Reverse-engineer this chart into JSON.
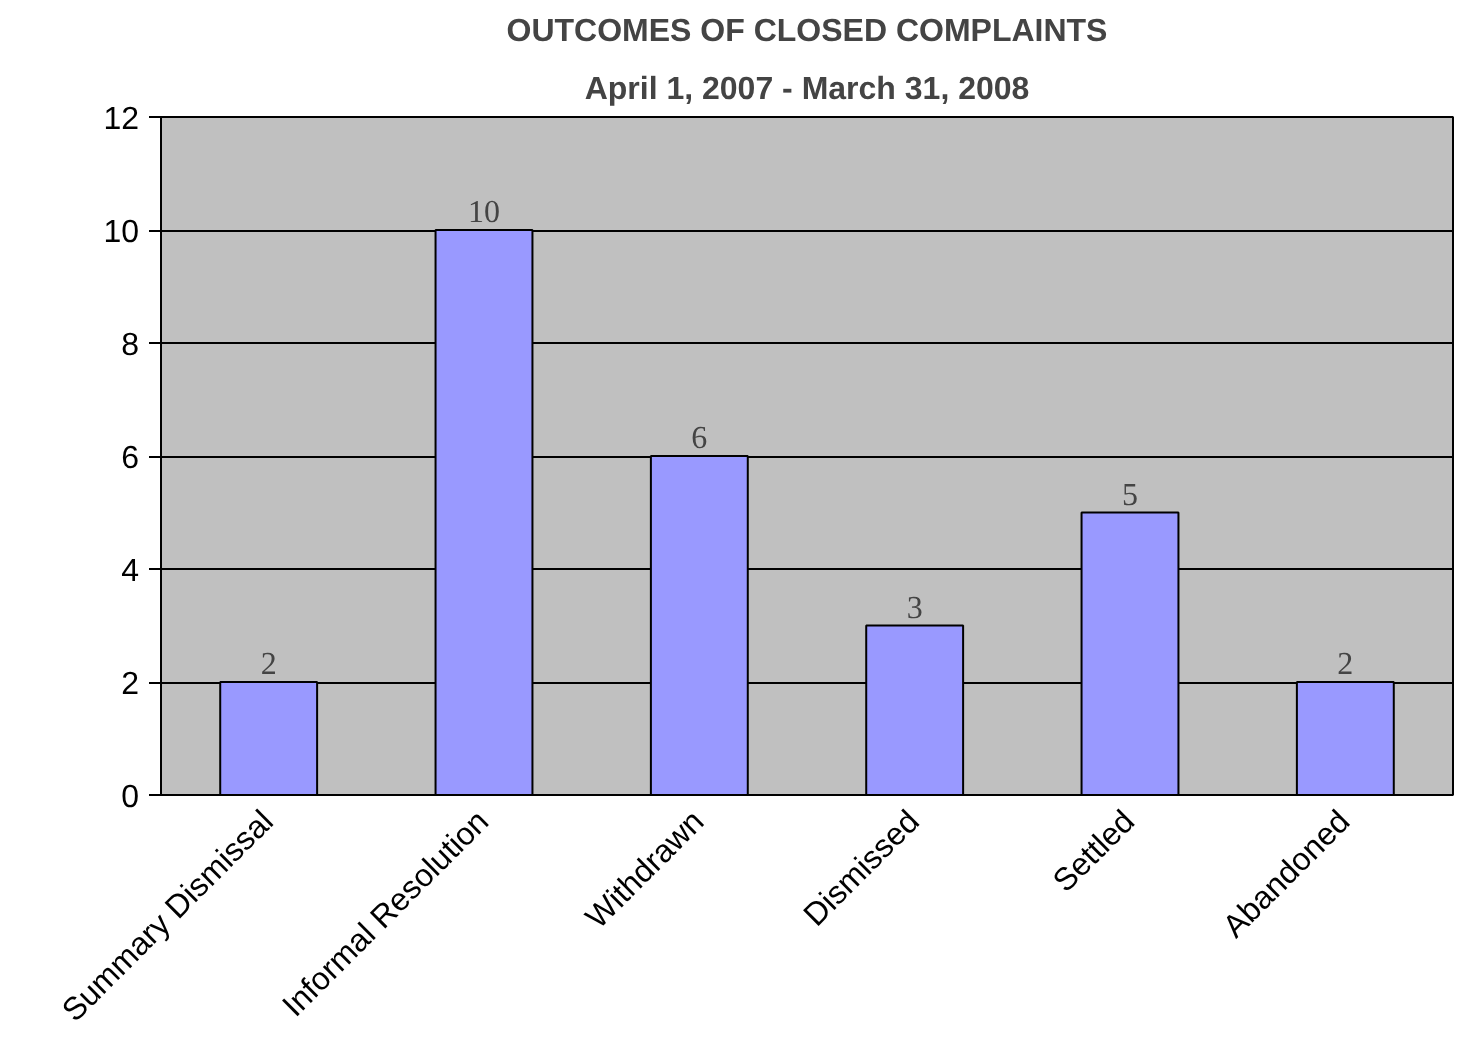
{
  "chart_data": {
    "type": "bar",
    "title": "OUTCOMES OF CLOSED COMPLAINTS",
    "subtitle": "April 1, 2007 - March 31, 2008",
    "categories": [
      "Summary Dismissal",
      "Informal Resolution",
      "Withdrawn",
      "Dismissed",
      "Settled",
      "Abandoned"
    ],
    "values": [
      2,
      10,
      6,
      3,
      5,
      2
    ],
    "color": "#9999ff",
    "ylim": [
      0,
      12
    ],
    "yticks": [
      0,
      2,
      4,
      6,
      8,
      10,
      12
    ],
    "grid": "y",
    "data_labels": true
  }
}
